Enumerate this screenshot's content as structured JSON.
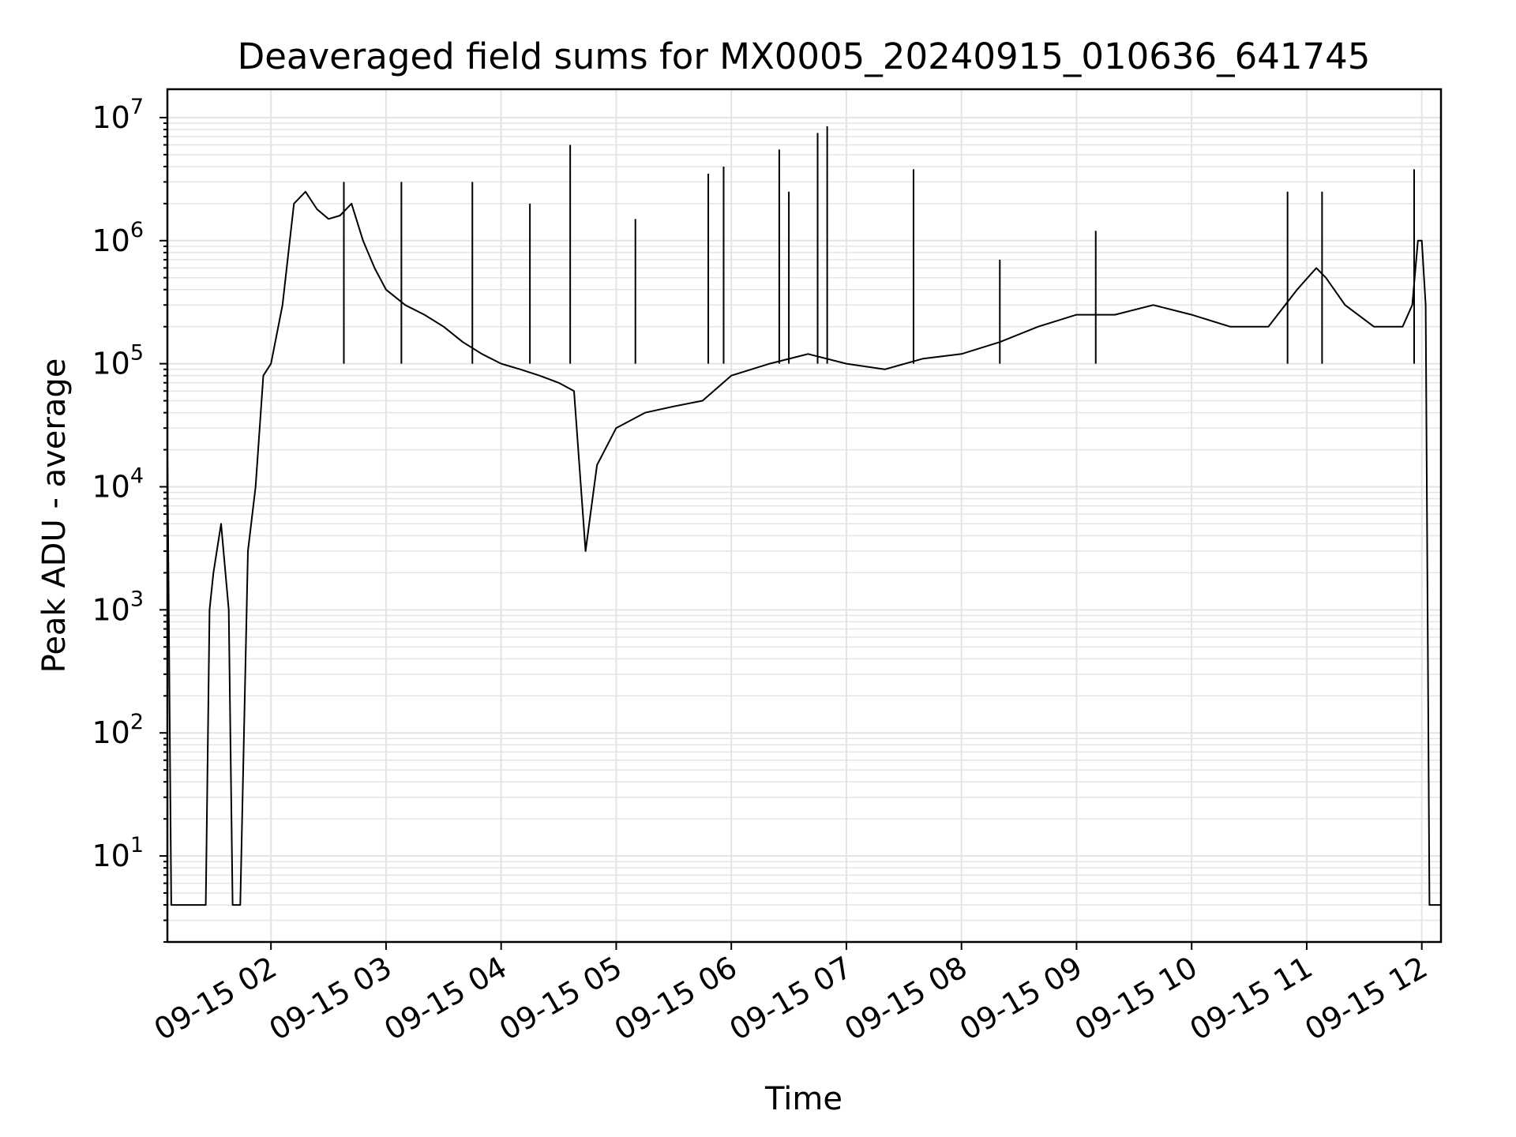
{
  "chart_data": {
    "type": "line",
    "title": "Deaveraged field sums for MX0005_20240915_010636_641745",
    "xlabel": "Time",
    "ylabel": "Peak ADU - average",
    "yscale": "log",
    "ylim": [
      2,
      17000000
    ],
    "xlim": [
      "2024-09-15 01:06:36",
      "2024-09-15 12:10:00"
    ],
    "grid": true,
    "legend": "none",
    "line_color": "#000000",
    "x_ticks": [
      {
        "t": "2024-09-15 02:00",
        "label": "09-15 02"
      },
      {
        "t": "2024-09-15 03:00",
        "label": "09-15 03"
      },
      {
        "t": "2024-09-15 04:00",
        "label": "09-15 04"
      },
      {
        "t": "2024-09-15 05:00",
        "label": "09-15 05"
      },
      {
        "t": "2024-09-15 06:00",
        "label": "09-15 06"
      },
      {
        "t": "2024-09-15 07:00",
        "label": "09-15 07"
      },
      {
        "t": "2024-09-15 08:00",
        "label": "09-15 08"
      },
      {
        "t": "2024-09-15 09:00",
        "label": "09-15 09"
      },
      {
        "t": "2024-09-15 10:00",
        "label": "09-15 10"
      },
      {
        "t": "2024-09-15 11:00",
        "label": "09-15 11"
      },
      {
        "t": "2024-09-15 12:00",
        "label": "09-15 12"
      }
    ],
    "y_ticks": [
      {
        "value": 10,
        "base": "10",
        "exp": "1"
      },
      {
        "value": 100,
        "base": "10",
        "exp": "2"
      },
      {
        "value": 1000,
        "base": "10",
        "exp": "3"
      },
      {
        "value": 10000,
        "base": "10",
        "exp": "4"
      },
      {
        "value": 100000,
        "base": "10",
        "exp": "5"
      },
      {
        "value": 1000000,
        "base": "10",
        "exp": "6"
      },
      {
        "value": 10000000,
        "base": "10",
        "exp": "7"
      }
    ],
    "series": [
      {
        "color": "#000000",
        "x": [
          "2024-09-15 01:06",
          "2024-09-15 01:08",
          "2024-09-15 01:12",
          "2024-09-15 01:16",
          "2024-09-15 01:18",
          "2024-09-15 01:22",
          "2024-09-15 01:26",
          "2024-09-15 01:28",
          "2024-09-15 01:30",
          "2024-09-15 01:34",
          "2024-09-15 01:38",
          "2024-09-15 01:40",
          "2024-09-15 01:44",
          "2024-09-15 01:48",
          "2024-09-15 01:52",
          "2024-09-15 01:56",
          "2024-09-15 02:00",
          "2024-09-15 02:06",
          "2024-09-15 02:12",
          "2024-09-15 02:18",
          "2024-09-15 02:24",
          "2024-09-15 02:30",
          "2024-09-15 02:36",
          "2024-09-15 02:42",
          "2024-09-15 02:48",
          "2024-09-15 02:54",
          "2024-09-15 03:00",
          "2024-09-15 03:10",
          "2024-09-15 03:20",
          "2024-09-15 03:30",
          "2024-09-15 03:40",
          "2024-09-15 03:50",
          "2024-09-15 04:00",
          "2024-09-15 04:10",
          "2024-09-15 04:20",
          "2024-09-15 04:30",
          "2024-09-15 04:38",
          "2024-09-15 04:44",
          "2024-09-15 04:50",
          "2024-09-15 05:00",
          "2024-09-15 05:15",
          "2024-09-15 05:30",
          "2024-09-15 05:45",
          "2024-09-15 06:00",
          "2024-09-15 06:20",
          "2024-09-15 06:40",
          "2024-09-15 07:00",
          "2024-09-15 07:20",
          "2024-09-15 07:40",
          "2024-09-15 08:00",
          "2024-09-15 08:20",
          "2024-09-15 08:40",
          "2024-09-15 09:00",
          "2024-09-15 09:20",
          "2024-09-15 09:40",
          "2024-09-15 10:00",
          "2024-09-15 10:20",
          "2024-09-15 10:40",
          "2024-09-15 10:55",
          "2024-09-15 11:05",
          "2024-09-15 11:10",
          "2024-09-15 11:20",
          "2024-09-15 11:35",
          "2024-09-15 11:50",
          "2024-09-15 11:55",
          "2024-09-15 11:58",
          "2024-09-15 12:00",
          "2024-09-15 12:02",
          "2024-09-15 12:04",
          "2024-09-15 12:10"
        ],
        "y": [
          20000,
          4,
          4,
          4,
          4,
          4,
          4,
          1000,
          2000,
          5000,
          1000,
          4,
          4,
          3000,
          10000,
          80000,
          100000,
          300000,
          2000000,
          2500000,
          1800000,
          1500000,
          1600000,
          2000000,
          1000000,
          600000,
          400000,
          300000,
          250000,
          200000,
          150000,
          120000,
          100000,
          90000,
          80000,
          70000,
          60000,
          3000,
          15000,
          30000,
          40000,
          45000,
          50000,
          80000,
          100000,
          120000,
          100000,
          90000,
          110000,
          120000,
          150000,
          200000,
          250000,
          250000,
          300000,
          250000,
          200000,
          200000,
          400000,
          600000,
          500000,
          300000,
          200000,
          200000,
          300000,
          1000000,
          1000000,
          300000,
          4,
          4
        ],
        "spike_x": [
          "2024-09-15 02:38",
          "2024-09-15 03:08",
          "2024-09-15 03:45",
          "2024-09-15 04:15",
          "2024-09-15 04:36",
          "2024-09-15 05:10",
          "2024-09-15 05:48",
          "2024-09-15 05:56",
          "2024-09-15 06:25",
          "2024-09-15 06:30",
          "2024-09-15 06:45",
          "2024-09-15 06:50",
          "2024-09-15 07:35",
          "2024-09-15 08:20",
          "2024-09-15 09:10",
          "2024-09-15 10:50",
          "2024-09-15 11:08",
          "2024-09-15 11:56"
        ],
        "spike_y": [
          3000000,
          3000000,
          3000000,
          2000000,
          6000000,
          1500000,
          3500000,
          4000000,
          5500000,
          2500000,
          7500000,
          8500000,
          3800000,
          700000,
          1200000,
          2500000,
          2500000,
          3800000
        ]
      }
    ]
  }
}
